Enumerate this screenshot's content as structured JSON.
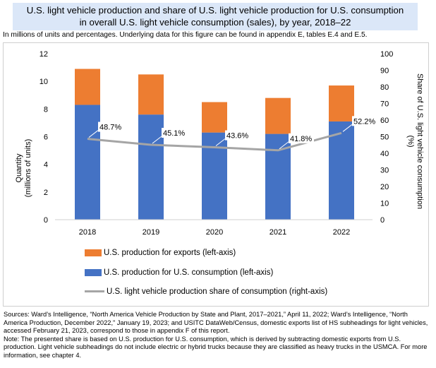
{
  "title_lines": [
    "U.S. light vehicle production and share of U.S. light vehicle production for U.S. consumption",
    "in overall U.S. light vehicle consumption (sales), by year, 2018–22"
  ],
  "subtitle": "In millions of units and percentages. Underlying data for this figure can be found in appendix E, tables E.4 and E.5.",
  "colors": {
    "consumption_bar": "#4472c4",
    "exports_bar": "#ed7d31",
    "share_line": "#a5a5a5",
    "title_bg": "#dbe7f8"
  },
  "chart_data": {
    "type": "bar",
    "stacked": true,
    "categories": [
      "2018",
      "2019",
      "2020",
      "2021",
      "2022"
    ],
    "series": [
      {
        "name": "U.S. production for U.S. consumption (left-axis)",
        "type": "bar",
        "axis": "left",
        "values": [
          8.3,
          7.6,
          6.3,
          6.2,
          7.1
        ]
      },
      {
        "name": "U.S. production for exports (left-axis)",
        "type": "bar",
        "axis": "left",
        "values": [
          2.6,
          2.9,
          2.2,
          2.6,
          2.6
        ]
      },
      {
        "name": "U.S. light vehicle production share of consumption (right-axis)",
        "type": "line",
        "axis": "right",
        "values": [
          48.7,
          45.1,
          43.6,
          41.8,
          52.2
        ],
        "labels": [
          "48.7%",
          "45.1%",
          "43.6%",
          "41.8%",
          "52.2%"
        ]
      }
    ],
    "y_left": {
      "label_lines": [
        "Quantity",
        "(millions of units)"
      ],
      "range": [
        0,
        12
      ],
      "ticks": [
        "0",
        "2",
        "4",
        "6",
        "8",
        "10",
        "12"
      ]
    },
    "y_right": {
      "label_lines": [
        "Share of U.S. light vehicle consumption",
        "(%)"
      ],
      "range": [
        0,
        100
      ],
      "ticks": [
        "0",
        "10",
        "20",
        "30",
        "40",
        "50",
        "60",
        "70",
        "80",
        "90",
        "100"
      ]
    },
    "grid": false,
    "legend_position": "bottom",
    "legend_order": [
      1,
      0,
      2
    ]
  },
  "notes": [
    "Sources: Ward’s Intelligence, “North America Vehicle Production by State and Plant, 2017–2021,” April 11, 2022; Ward’s Intelligence, “North America Production, December 2022,” January 19, 2023; and USITC DataWeb/Census, domestic exports list of HS subheadings for light vehicles, accessed February 21, 2023, correspond to those in appendix F of this report.",
    "Note: The presented share is based on U.S. production for U.S. consumption, which is derived by subtracting domestic exports from U.S. production. Light vehicle subheadings do not include electric or hybrid trucks because they are classified as heavy trucks in the USMCA. For more information, see chapter 4."
  ]
}
